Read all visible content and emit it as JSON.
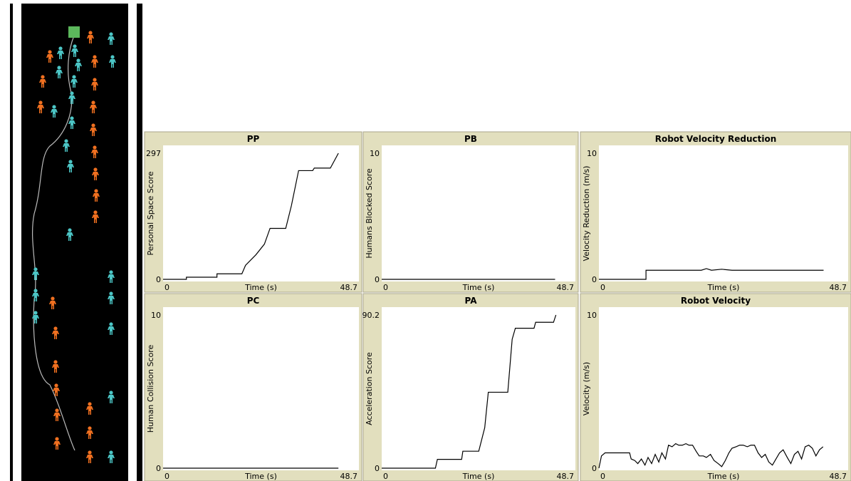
{
  "chart_data": [
    {
      "type": "line",
      "title": "PP",
      "ylabel": "Personal Space Score",
      "xlabel": "Time (s)",
      "xlim": [
        0,
        48.7
      ],
      "ylim": [
        0,
        297
      ],
      "xticks": [
        0,
        48.7
      ],
      "yticks": [
        0,
        297
      ],
      "color": "#000000",
      "x": [
        0,
        5.8,
        5.8,
        13.4,
        13.4,
        19.6,
        20.5,
        23.1,
        25.2,
        26.6,
        30.5,
        31.9,
        33.7,
        37.2,
        37.6,
        41.6,
        43.6
      ],
      "values": [
        0,
        0,
        5,
        5,
        13,
        13,
        33,
        58,
        83,
        120,
        120,
        173,
        256,
        256,
        262,
        262,
        297
      ]
    },
    {
      "type": "line",
      "title": "PB",
      "ylabel": "Humans Blocked Score",
      "xlabel": "Time (s)",
      "xlim": [
        0,
        48.7
      ],
      "ylim": [
        0,
        10
      ],
      "xticks": [
        0,
        48.7
      ],
      "yticks": [
        0,
        10
      ],
      "color": "#000000",
      "x": [
        0,
        43.6
      ],
      "values": [
        0,
        0
      ]
    },
    {
      "type": "line",
      "title": "Robot Velocity Reduction",
      "ylabel": "Velocity Reduction (m/s)",
      "xlabel": "Time (s)",
      "xlim": [
        0,
        48.7
      ],
      "ylim": [
        0,
        10
      ],
      "xticks": [
        0,
        48.7
      ],
      "yticks": [
        0,
        10
      ],
      "color": "#000000",
      "x": [
        0,
        9.2,
        9.2,
        20,
        21,
        22,
        24,
        26,
        43.9
      ],
      "values": [
        0,
        0,
        0.72,
        0.72,
        0.85,
        0.72,
        0.8,
        0.72,
        0.72
      ]
    },
    {
      "type": "line",
      "title": "PC",
      "ylabel": "Human Collision Score",
      "xlabel": "Time (s)",
      "xlim": [
        0,
        48.7
      ],
      "ylim": [
        0,
        10
      ],
      "xticks": [
        0,
        48.7
      ],
      "yticks": [
        0,
        10
      ],
      "color": "#000000",
      "x": [
        0,
        43.6
      ],
      "values": [
        0,
        0
      ]
    },
    {
      "type": "line",
      "title": "PA",
      "ylabel": "Acceleration Score",
      "xlabel": "Time (s)",
      "xlim": [
        0,
        48.7
      ],
      "ylim": [
        0,
        90.2
      ],
      "xticks": [
        0,
        48.7
      ],
      "yticks": [
        0,
        90.2
      ],
      "color": "#000000",
      "x": [
        0,
        13.5,
        14.0,
        20.1,
        20.4,
        24.4,
        25.9,
        26.8,
        31.7,
        32.8,
        33.6,
        38.3,
        38.7,
        43.2,
        43.8
      ],
      "values": [
        0,
        0,
        5.2,
        5.2,
        10,
        10,
        23.8,
        44.7,
        44.7,
        75.9,
        82.4,
        82.4,
        85.9,
        85.9,
        90.2
      ]
    },
    {
      "type": "line",
      "title": "Robot Velocity",
      "ylabel": "Velocity (m/s)",
      "xlabel": "Time (s)",
      "xlim": [
        0,
        48.7
      ],
      "ylim": [
        0,
        10
      ],
      "xticks": [
        0,
        48.7
      ],
      "yticks": [
        0,
        10
      ],
      "color": "#000000",
      "x": [
        0,
        0.5,
        1.2,
        6,
        6.3,
        7,
        7.6,
        8.3,
        9,
        9.6,
        10.3,
        11,
        11.7,
        12.3,
        13,
        13.6,
        14.3,
        15,
        15.6,
        16.3,
        17,
        17.6,
        18.3,
        19,
        19.6,
        20.4,
        21,
        21.8,
        22.5,
        23.3,
        24,
        24.7,
        25.4,
        26,
        26.8,
        27.5,
        28.2,
        29,
        29.7,
        30.4,
        31.1,
        31.8,
        32.5,
        33.2,
        33.9,
        34.6,
        35.3,
        36,
        36.8,
        37.5,
        38.2,
        38.9,
        39.6,
        40.3,
        41,
        41.7,
        42.4,
        43.1,
        43.8
      ],
      "values": [
        0,
        0.8,
        1.0,
        1.0,
        0.6,
        0.5,
        0.3,
        0.6,
        0.2,
        0.7,
        0.3,
        0.9,
        0.4,
        1.0,
        0.6,
        1.5,
        1.4,
        1.6,
        1.5,
        1.5,
        1.6,
        1.5,
        1.5,
        1.1,
        0.8,
        0.8,
        0.7,
        0.9,
        0.5,
        0.3,
        0.1,
        0.5,
        1.0,
        1.3,
        1.4,
        1.5,
        1.5,
        1.4,
        1.5,
        1.5,
        1.0,
        0.7,
        0.9,
        0.4,
        0.2,
        0.6,
        1.0,
        1.2,
        0.7,
        0.3,
        0.9,
        1.1,
        0.6,
        1.4,
        1.5,
        1.3,
        0.8,
        1.2,
        1.4
      ]
    }
  ]
}
